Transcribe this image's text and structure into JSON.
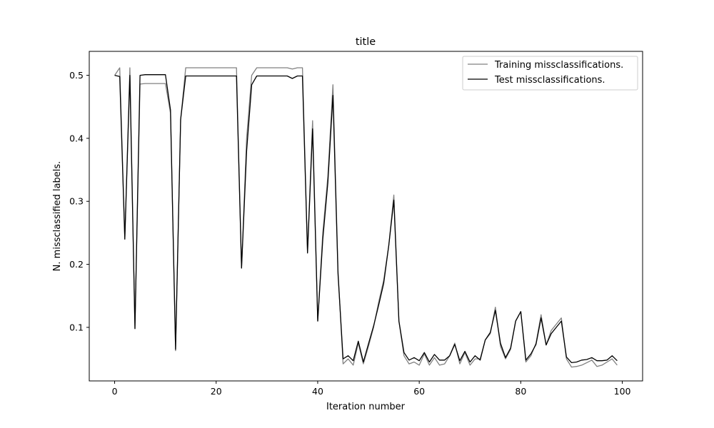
{
  "chart_data": {
    "type": "line",
    "title": "title",
    "xlabel": "Iteration number",
    "ylabel": "N. missclassified labels.",
    "xlim": [
      -5,
      104
    ],
    "ylim": [
      0.015,
      0.538
    ],
    "xticks": [
      0,
      20,
      40,
      60,
      80,
      100
    ],
    "yticks": [
      0.1,
      0.2,
      0.3,
      0.4,
      0.5
    ],
    "xtick_labels": [
      "0",
      "20",
      "40",
      "60",
      "80",
      "100"
    ],
    "ytick_labels": [
      "0.1",
      "0.2",
      "0.3",
      "0.4",
      "0.5"
    ],
    "grid": false,
    "legend_position": "top-right",
    "series": [
      {
        "name": "Training missclassifications.",
        "color": "#808080",
        "x": [
          0,
          1,
          2,
          3,
          4,
          5,
          6,
          7,
          8,
          9,
          10,
          11,
          12,
          13,
          14,
          15,
          16,
          17,
          18,
          19,
          20,
          21,
          22,
          23,
          24,
          25,
          26,
          27,
          28,
          29,
          30,
          31,
          32,
          33,
          34,
          35,
          36,
          37,
          38,
          39,
          40,
          41,
          42,
          43,
          44,
          45,
          46,
          47,
          48,
          49,
          50,
          51,
          52,
          53,
          54,
          55,
          56,
          57,
          58,
          59,
          60,
          61,
          62,
          63,
          64,
          65,
          66,
          67,
          68,
          69,
          70,
          71,
          72,
          73,
          74,
          75,
          76,
          77,
          78,
          79,
          80,
          81,
          82,
          83,
          84,
          85,
          86,
          87,
          88,
          89,
          90,
          91,
          92,
          93,
          94,
          95,
          96,
          97,
          98,
          99
        ],
        "values": [
          0.5,
          0.512,
          0.24,
          0.512,
          0.098,
          0.486,
          0.487,
          0.487,
          0.487,
          0.487,
          0.487,
          0.44,
          0.063,
          0.43,
          0.512,
          0.512,
          0.512,
          0.512,
          0.512,
          0.512,
          0.512,
          0.512,
          0.512,
          0.512,
          0.512,
          0.194,
          0.4,
          0.5,
          0.512,
          0.512,
          0.512,
          0.512,
          0.512,
          0.512,
          0.512,
          0.51,
          0.512,
          0.512,
          0.22,
          0.428,
          0.11,
          0.25,
          0.34,
          0.485,
          0.19,
          0.042,
          0.05,
          0.04,
          0.075,
          0.042,
          0.07,
          0.1,
          0.14,
          0.175,
          0.23,
          0.31,
          0.11,
          0.055,
          0.042,
          0.045,
          0.04,
          0.058,
          0.04,
          0.052,
          0.04,
          0.042,
          0.055,
          0.075,
          0.042,
          0.06,
          0.04,
          0.05,
          0.05,
          0.08,
          0.09,
          0.132,
          0.07,
          0.05,
          0.065,
          0.11,
          0.125,
          0.045,
          0.055,
          0.075,
          0.12,
          0.072,
          0.095,
          0.105,
          0.115,
          0.05,
          0.037,
          0.038,
          0.04,
          0.044,
          0.048,
          0.038,
          0.04,
          0.045,
          0.05,
          0.04
        ]
      },
      {
        "name": "Test missclassifications.",
        "color": "#000000",
        "x": [
          0,
          1,
          2,
          3,
          4,
          5,
          6,
          7,
          8,
          9,
          10,
          11,
          12,
          13,
          14,
          15,
          16,
          17,
          18,
          19,
          20,
          21,
          22,
          23,
          24,
          25,
          26,
          27,
          28,
          29,
          30,
          31,
          32,
          33,
          34,
          35,
          36,
          37,
          38,
          39,
          40,
          41,
          42,
          43,
          44,
          45,
          46,
          47,
          48,
          49,
          50,
          51,
          52,
          53,
          54,
          55,
          56,
          57,
          58,
          59,
          60,
          61,
          62,
          63,
          64,
          65,
          66,
          67,
          68,
          69,
          70,
          71,
          72,
          73,
          74,
          75,
          76,
          77,
          78,
          79,
          80,
          81,
          82,
          83,
          84,
          85,
          86,
          87,
          88,
          89,
          90,
          91,
          92,
          93,
          94,
          95,
          96,
          97,
          98,
          99
        ],
        "values": [
          0.5,
          0.498,
          0.24,
          0.5,
          0.098,
          0.5,
          0.501,
          0.501,
          0.501,
          0.501,
          0.501,
          0.445,
          0.065,
          0.43,
          0.499,
          0.499,
          0.499,
          0.499,
          0.499,
          0.499,
          0.499,
          0.499,
          0.499,
          0.499,
          0.499,
          0.194,
          0.38,
          0.485,
          0.499,
          0.499,
          0.499,
          0.499,
          0.499,
          0.499,
          0.499,
          0.495,
          0.499,
          0.499,
          0.218,
          0.415,
          0.11,
          0.24,
          0.33,
          0.468,
          0.185,
          0.05,
          0.055,
          0.047,
          0.078,
          0.045,
          0.074,
          0.102,
          0.135,
          0.17,
          0.23,
          0.302,
          0.11,
          0.06,
          0.048,
          0.052,
          0.047,
          0.06,
          0.045,
          0.057,
          0.048,
          0.048,
          0.055,
          0.073,
          0.047,
          0.062,
          0.045,
          0.055,
          0.048,
          0.08,
          0.092,
          0.127,
          0.075,
          0.052,
          0.067,
          0.11,
          0.125,
          0.048,
          0.058,
          0.073,
          0.115,
          0.072,
          0.09,
          0.1,
          0.11,
          0.053,
          0.044,
          0.045,
          0.048,
          0.049,
          0.052,
          0.047,
          0.047,
          0.048,
          0.055,
          0.047
        ]
      }
    ]
  }
}
